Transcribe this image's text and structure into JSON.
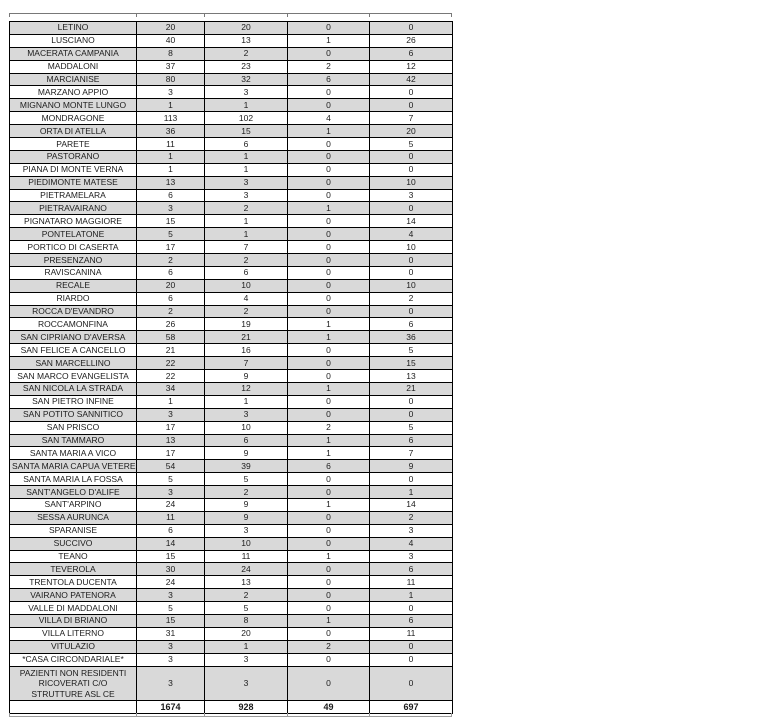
{
  "colors": {
    "row_shaded": "#d9d9d9",
    "row_plain": "#ffffff",
    "border": "#000000",
    "text": "#1c1c1c"
  },
  "table": {
    "rows": [
      {
        "name": "LETINO",
        "values": [
          20,
          20,
          0,
          0
        ]
      },
      {
        "name": "LUSCIANO",
        "values": [
          40,
          13,
          1,
          26
        ]
      },
      {
        "name": "MACERATA CAMPANIA",
        "values": [
          8,
          2,
          0,
          6
        ]
      },
      {
        "name": "MADDALONI",
        "values": [
          37,
          23,
          2,
          12
        ]
      },
      {
        "name": "MARCIANISE",
        "values": [
          80,
          32,
          6,
          42
        ]
      },
      {
        "name": "MARZANO APPIO",
        "values": [
          3,
          3,
          0,
          0
        ]
      },
      {
        "name": "MIGNANO MONTE LUNGO",
        "values": [
          1,
          1,
          0,
          0
        ]
      },
      {
        "name": "MONDRAGONE",
        "values": [
          113,
          102,
          4,
          7
        ]
      },
      {
        "name": "ORTA DI ATELLA",
        "values": [
          36,
          15,
          1,
          20
        ]
      },
      {
        "name": "PARETE",
        "values": [
          11,
          6,
          0,
          5
        ]
      },
      {
        "name": "PASTORANO",
        "values": [
          1,
          1,
          0,
          0
        ]
      },
      {
        "name": "PIANA DI MONTE VERNA",
        "values": [
          1,
          1,
          0,
          0
        ]
      },
      {
        "name": "PIEDIMONTE MATESE",
        "values": [
          13,
          3,
          0,
          10
        ]
      },
      {
        "name": "PIETRAMELARA",
        "values": [
          6,
          3,
          0,
          3
        ]
      },
      {
        "name": "PIETRAVAIRANO",
        "values": [
          3,
          2,
          1,
          0
        ]
      },
      {
        "name": "PIGNATARO MAGGIORE",
        "values": [
          15,
          1,
          0,
          14
        ]
      },
      {
        "name": "PONTELATONE",
        "values": [
          5,
          1,
          0,
          4
        ]
      },
      {
        "name": "PORTICO DI CASERTA",
        "values": [
          17,
          7,
          0,
          10
        ]
      },
      {
        "name": "PRESENZANO",
        "values": [
          2,
          2,
          0,
          0
        ]
      },
      {
        "name": "RAVISCANINA",
        "values": [
          6,
          6,
          0,
          0
        ]
      },
      {
        "name": "RECALE",
        "values": [
          20,
          10,
          0,
          10
        ]
      },
      {
        "name": "RIARDO",
        "values": [
          6,
          4,
          0,
          2
        ]
      },
      {
        "name": "ROCCA D'EVANDRO",
        "values": [
          2,
          2,
          0,
          0
        ]
      },
      {
        "name": "ROCCAMONFINA",
        "values": [
          26,
          19,
          1,
          6
        ]
      },
      {
        "name": "SAN CIPRIANO D'AVERSA",
        "values": [
          58,
          21,
          1,
          36
        ]
      },
      {
        "name": "SAN FELICE A CANCELLO",
        "values": [
          21,
          16,
          0,
          5
        ]
      },
      {
        "name": "SAN MARCELLINO",
        "values": [
          22,
          7,
          0,
          15
        ]
      },
      {
        "name": "SAN MARCO EVANGELISTA",
        "values": [
          22,
          9,
          0,
          13
        ]
      },
      {
        "name": "SAN NICOLA LA STRADA",
        "values": [
          34,
          12,
          1,
          21
        ]
      },
      {
        "name": "SAN PIETRO INFINE",
        "values": [
          1,
          1,
          0,
          0
        ]
      },
      {
        "name": "SAN POTITO SANNITICO",
        "values": [
          3,
          3,
          0,
          0
        ]
      },
      {
        "name": "SAN PRISCO",
        "values": [
          17,
          10,
          2,
          5
        ]
      },
      {
        "name": "SAN TAMMARO",
        "values": [
          13,
          6,
          1,
          6
        ]
      },
      {
        "name": "SANTA MARIA A VICO",
        "values": [
          17,
          9,
          1,
          7
        ]
      },
      {
        "name": "SANTA MARIA CAPUA VETERE",
        "values": [
          54,
          39,
          6,
          9
        ]
      },
      {
        "name": "SANTA MARIA LA FOSSA",
        "values": [
          5,
          5,
          0,
          0
        ]
      },
      {
        "name": "SANT'ANGELO D'ALIFE",
        "values": [
          3,
          2,
          0,
          1
        ]
      },
      {
        "name": "SANT'ARPINO",
        "values": [
          24,
          9,
          1,
          14
        ]
      },
      {
        "name": "SESSA AURUNCA",
        "values": [
          11,
          9,
          0,
          2
        ]
      },
      {
        "name": "SPARANISE",
        "values": [
          6,
          3,
          0,
          3
        ]
      },
      {
        "name": "SUCCIVO",
        "values": [
          14,
          10,
          0,
          4
        ]
      },
      {
        "name": "TEANO",
        "values": [
          15,
          11,
          1,
          3
        ]
      },
      {
        "name": "TEVEROLA",
        "values": [
          30,
          24,
          0,
          6
        ]
      },
      {
        "name": "TRENTOLA DUCENTA",
        "values": [
          24,
          13,
          0,
          11
        ]
      },
      {
        "name": "VAIRANO PATENORA",
        "values": [
          3,
          2,
          0,
          1
        ]
      },
      {
        "name": "VALLE DI MADDALONI",
        "values": [
          5,
          5,
          0,
          0
        ]
      },
      {
        "name": "VILLA DI BRIANO",
        "values": [
          15,
          8,
          1,
          6
        ]
      },
      {
        "name": "VILLA LITERNO",
        "values": [
          31,
          20,
          0,
          11
        ]
      },
      {
        "name": "VITULAZIO",
        "values": [
          3,
          1,
          2,
          0
        ]
      },
      {
        "name": "*CASA CIRCONDARIALE*",
        "values": [
          3,
          3,
          0,
          0
        ]
      },
      {
        "name": "PAZIENTI NON RESIDENTI RICOVERATI C/O STRUTTURE ASL CE",
        "values": [
          3,
          3,
          0,
          0
        ],
        "tall": true
      }
    ],
    "totals_row": {
      "label": "",
      "values": [
        1674,
        928,
        49,
        697
      ]
    }
  }
}
